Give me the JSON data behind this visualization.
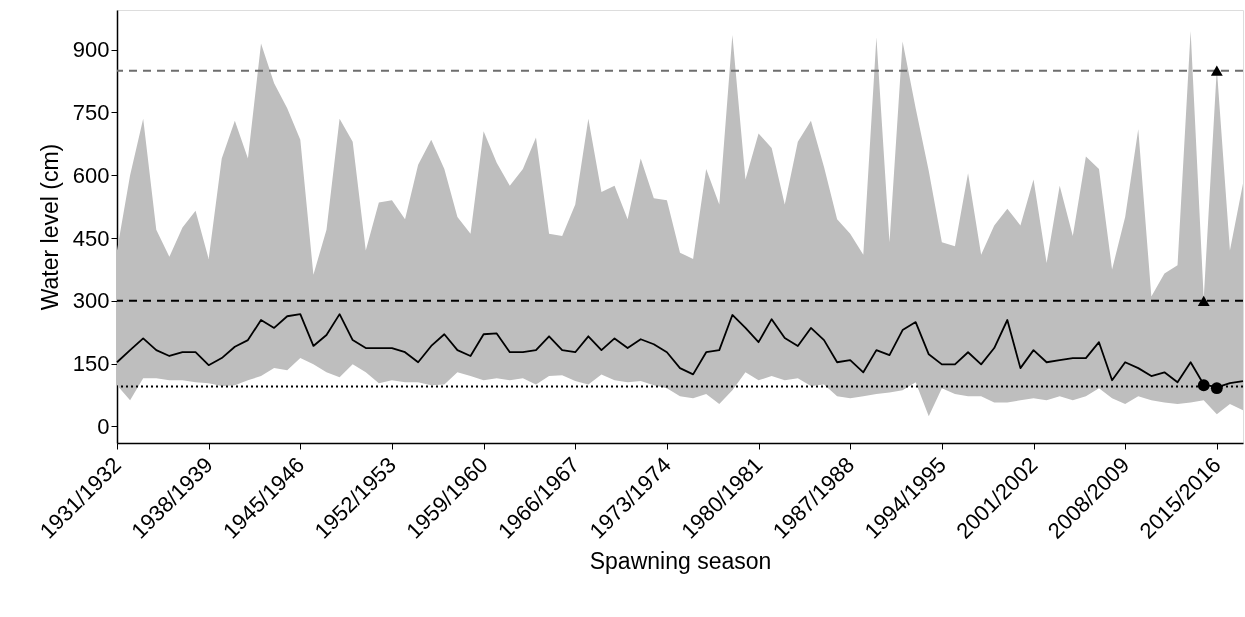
{
  "chart_data": {
    "type": "line",
    "xlabel": "Spawning season",
    "ylabel": "Water level (cm)",
    "categories": [
      "1931/1932",
      null,
      null,
      null,
      null,
      null,
      null,
      "1938/1939",
      null,
      null,
      null,
      null,
      null,
      null,
      "1945/1946",
      null,
      null,
      null,
      null,
      null,
      null,
      "1952/1953",
      null,
      null,
      null,
      null,
      null,
      null,
      "1959/1960",
      null,
      null,
      null,
      null,
      null,
      null,
      "1966/1967",
      null,
      null,
      null,
      null,
      null,
      null,
      "1973/1974",
      null,
      null,
      null,
      null,
      null,
      null,
      "1980/1981",
      null,
      null,
      null,
      null,
      null,
      null,
      "1987/1988",
      null,
      null,
      null,
      null,
      null,
      null,
      "1994/1995",
      null,
      null,
      null,
      null,
      null,
      null,
      "2001/2002",
      null,
      null,
      null,
      null,
      null,
      null,
      "2008/2009",
      null,
      null,
      null,
      null,
      null,
      null,
      "2015/2016",
      null,
      null
    ],
    "series": [
      {
        "color": "#000000",
        "values": [
          153,
          182,
          210,
          182,
          168,
          177,
          177,
          146,
          163,
          190,
          206,
          254,
          235,
          263,
          268,
          192,
          218,
          268,
          206,
          187,
          187,
          187,
          177,
          153,
          192,
          220,
          182,
          168,
          220,
          222,
          177,
          177,
          182,
          215,
          182,
          177,
          215,
          182,
          210,
          187,
          208,
          196,
          177,
          139,
          124,
          177,
          182,
          266,
          235,
          201,
          256,
          211,
          192,
          235,
          206,
          153,
          158,
          129,
          182,
          170,
          230,
          249,
          172,
          148,
          148,
          177,
          148,
          187,
          254,
          139,
          182,
          153,
          158,
          163,
          163,
          201,
          110,
          153,
          139,
          120,
          129,
          105,
          153,
          100,
          93,
          103,
          108
        ],
        "lower": [
          98,
          62,
          115,
          115,
          110,
          110,
          105,
          103,
          96,
          98,
          110,
          120,
          139,
          134,
          163,
          148,
          129,
          117,
          148,
          129,
          103,
          110,
          105,
          105,
          98,
          100,
          129,
          120,
          110,
          115,
          110,
          115,
          100,
          120,
          122,
          108,
          100,
          124,
          110,
          105,
          108,
          98,
          91,
          72,
          67,
          77,
          53,
          86,
          129,
          110,
          120,
          110,
          115,
          96,
          100,
          72,
          67,
          72,
          77,
          81,
          86,
          105,
          24,
          91,
          77,
          72,
          72,
          57,
          57,
          62,
          67,
          62,
          72,
          62,
          72,
          91,
          67,
          53,
          72,
          62,
          57,
          53,
          57,
          62,
          29,
          53,
          38
        ],
        "upper": [
          420,
          600,
          735,
          470,
          405,
          475,
          515,
          400,
          640,
          730,
          640,
          915,
          820,
          760,
          685,
          362,
          470,
          735,
          680,
          420,
          535,
          540,
          495,
          625,
          685,
          615,
          500,
          460,
          705,
          630,
          575,
          615,
          690,
          460,
          455,
          530,
          735,
          560,
          575,
          495,
          640,
          545,
          540,
          415,
          400,
          615,
          530,
          935,
          590,
          700,
          665,
          530,
          680,
          730,
          620,
          495,
          460,
          410,
          930,
          440,
          920,
          760,
          610,
          440,
          430,
          605,
          410,
          480,
          520,
          480,
          590,
          390,
          575,
          455,
          645,
          615,
          375,
          500,
          710,
          310,
          365,
          385,
          945,
          305,
          855,
          420,
          580
        ]
      },
      {
        "type": "scatter",
        "marker": "triangle",
        "color": "#000000",
        "values": [
          null,
          null,
          null,
          null,
          null,
          null,
          null,
          null,
          null,
          null,
          null,
          null,
          null,
          null,
          null,
          null,
          null,
          null,
          null,
          null,
          null,
          null,
          null,
          null,
          null,
          null,
          null,
          null,
          null,
          null,
          null,
          null,
          null,
          null,
          null,
          null,
          null,
          null,
          null,
          null,
          null,
          null,
          null,
          null,
          null,
          null,
          null,
          null,
          null,
          null,
          null,
          null,
          null,
          null,
          null,
          null,
          null,
          null,
          null,
          null,
          null,
          null,
          null,
          null,
          null,
          null,
          null,
          null,
          null,
          null,
          null,
          null,
          null,
          null,
          null,
          null,
          null,
          null,
          null,
          null,
          null,
          null,
          null,
          300,
          850,
          null,
          null
        ]
      },
      {
        "type": "scatter",
        "marker": "circle",
        "color": "#000000",
        "values": [
          null,
          null,
          null,
          null,
          null,
          null,
          null,
          null,
          null,
          null,
          null,
          null,
          null,
          null,
          null,
          null,
          null,
          null,
          null,
          null,
          null,
          null,
          null,
          null,
          null,
          null,
          null,
          null,
          null,
          null,
          null,
          null,
          null,
          null,
          null,
          null,
          null,
          null,
          null,
          null,
          null,
          null,
          null,
          null,
          null,
          null,
          null,
          null,
          null,
          null,
          null,
          null,
          null,
          null,
          null,
          null,
          null,
          null,
          null,
          null,
          null,
          null,
          null,
          null,
          null,
          null,
          null,
          null,
          null,
          null,
          null,
          null,
          null,
          null,
          null,
          null,
          null,
          null,
          null,
          null,
          null,
          null,
          null,
          98,
          91,
          null,
          null
        ]
      }
    ],
    "ylim": [
      -40,
      995
    ],
    "yticks": [
      0,
      150,
      300,
      450,
      600,
      750,
      900
    ],
    "ref_lines": [
      {
        "axis": "y",
        "value": 850,
        "color": "#6e6e6e",
        "line_style": "dashed"
      },
      {
        "axis": "y",
        "value": 300,
        "color": "#000000",
        "line_style": "dashed"
      },
      {
        "axis": "y",
        "value": 95,
        "color": "#000000",
        "line_style": "dotted"
      }
    ],
    "grid": false
  }
}
